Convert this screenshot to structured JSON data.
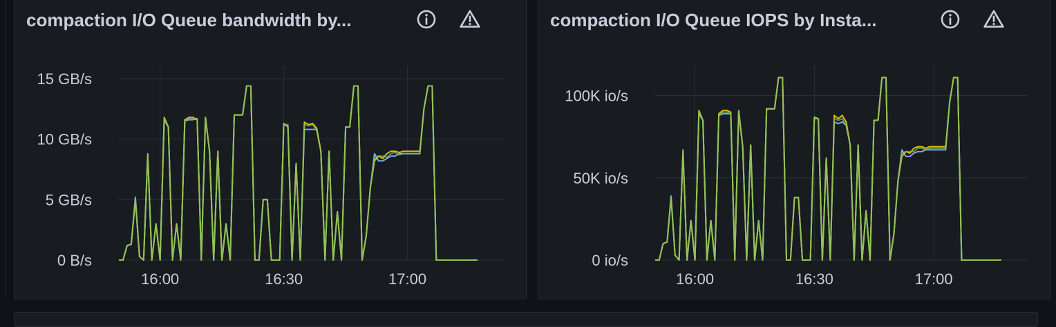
{
  "colors": {
    "series_a": "#8ab8ff",
    "series_b": "#f2cc0c",
    "series_c": "#73bf69",
    "grid": "#2c2f36",
    "text": "#ccccdc"
  },
  "icons": {
    "info": "info-circle-icon",
    "warning": "warning-triangle-icon"
  },
  "panels": [
    {
      "title": "compaction I/O Queue bandwidth by...",
      "chart_data": {
        "type": "line",
        "x": [
          "15:50",
          "15:51",
          "15:52",
          "15:53",
          "15:54",
          "15:55",
          "15:56",
          "15:57",
          "15:58",
          "15:59",
          "16:00",
          "16:01",
          "16:02",
          "16:03",
          "16:04",
          "16:05",
          "16:06",
          "16:07",
          "16:08",
          "16:09",
          "16:10",
          "16:11",
          "16:12",
          "16:13",
          "16:14",
          "16:15",
          "16:16",
          "16:17",
          "16:18",
          "16:19",
          "16:20",
          "16:21",
          "16:22",
          "16:23",
          "16:24",
          "16:25",
          "16:26",
          "16:27",
          "16:28",
          "16:29",
          "16:30",
          "16:31",
          "16:32",
          "16:33",
          "16:34",
          "16:35",
          "16:36",
          "16:37",
          "16:38",
          "16:39",
          "16:40",
          "16:41",
          "16:42",
          "16:43",
          "16:44",
          "16:45",
          "16:46",
          "16:47",
          "16:48",
          "16:49",
          "16:50",
          "16:51",
          "16:52",
          "16:53",
          "16:54",
          "16:55",
          "16:56",
          "16:57",
          "16:58",
          "16:59",
          "17:00",
          "17:01",
          "17:02",
          "17:03",
          "17:04",
          "17:05",
          "17:06",
          "17:07",
          "17:08",
          "17:09",
          "17:10",
          "17:11",
          "17:12",
          "17:13",
          "17:14",
          "17:15",
          "17:16",
          "17:17"
        ],
        "series": [
          {
            "values": [
              0,
              0,
              1.2,
              1.3,
              5.2,
              0.3,
              0,
              8.8,
              0,
              3,
              0,
              11.6,
              11,
              0,
              3,
              0,
              11.5,
              11.6,
              11.6,
              11.7,
              0,
              11.8,
              9,
              0,
              9,
              0,
              3,
              0,
              12,
              12,
              12,
              14.4,
              14.4,
              0,
              0,
              5,
              5,
              0,
              0,
              0,
              11.3,
              11,
              0,
              8,
              0,
              10.8,
              10.8,
              10.8,
              10.8,
              9,
              0,
              9,
              0,
              4,
              0,
              11,
              11,
              14.4,
              14.4,
              0,
              2,
              6,
              8.8,
              8.2,
              8.2,
              8.4,
              8.6,
              8.6,
              8.8,
              8.8,
              8.8,
              8.8,
              8.8,
              8.8,
              12.5,
              14.4,
              14.4,
              0,
              0,
              0,
              0,
              0,
              0,
              0,
              0,
              0,
              0,
              0
            ]
          },
          {
            "values": [
              0,
              0,
              1.2,
              1.3,
              5,
              0.3,
              0,
              8.7,
              0,
              3,
              0,
              11.8,
              11,
              0,
              3,
              0,
              11.6,
              11.8,
              11.8,
              11.6,
              0,
              11.8,
              9,
              0,
              9,
              0,
              3,
              0,
              12,
              12,
              12,
              14.4,
              14.4,
              0,
              0,
              5,
              5,
              0,
              0,
              0,
              11.2,
              11.1,
              0,
              8,
              0,
              11.4,
              11.2,
              11.3,
              10.9,
              9,
              0,
              9,
              0,
              4,
              0,
              11,
              11,
              14.4,
              14.4,
              0,
              2,
              6,
              8.2,
              8.6,
              8.4,
              8.8,
              9,
              9,
              8.9,
              9,
              9,
              9,
              9,
              9,
              12.5,
              14.4,
              14.4,
              0,
              0,
              0,
              0,
              0,
              0,
              0,
              0,
              0,
              0,
              0
            ]
          },
          {
            "values": [
              0,
              0,
              1.2,
              1.3,
              5,
              0.3,
              0,
              8.7,
              0,
              3,
              0,
              11.7,
              11,
              0,
              3,
              0,
              11.5,
              11.7,
              11.7,
              11.6,
              0,
              11.8,
              9,
              0,
              9,
              0,
              3,
              0,
              12,
              12,
              12,
              14.4,
              14.4,
              0,
              0,
              5,
              5,
              0,
              0,
              0,
              11.2,
              11.2,
              0,
              8,
              0,
              11.2,
              11.1,
              11.2,
              10.7,
              9,
              0,
              9,
              0,
              4,
              0,
              11,
              11,
              14.4,
              14.4,
              0,
              2,
              6,
              8.4,
              8.6,
              8.6,
              8.5,
              8.8,
              8.9,
              8.7,
              8.8,
              8.8,
              8.8,
              8.8,
              8.8,
              12.5,
              14.4,
              14.4,
              0,
              0,
              0,
              0,
              0,
              0,
              0,
              0,
              0,
              0,
              0
            ]
          }
        ],
        "ylim": [
          0,
          15
        ],
        "y_ticks": [
          0,
          5,
          10,
          15
        ],
        "y_tick_labels": [
          "0 B/s",
          "5 GB/s",
          "10 GB/s",
          "15 GB/s"
        ],
        "x_ticks": [
          10,
          40,
          70
        ],
        "x_tick_labels": [
          "16:00",
          "16:30",
          "17:00"
        ],
        "grid": true
      }
    },
    {
      "title": "compaction I/O Queue IOPS by Insta...",
      "chart_data": {
        "type": "line",
        "x": [
          "15:50",
          "15:51",
          "15:52",
          "15:53",
          "15:54",
          "15:55",
          "15:56",
          "15:57",
          "15:58",
          "15:59",
          "16:00",
          "16:01",
          "16:02",
          "16:03",
          "16:04",
          "16:05",
          "16:06",
          "16:07",
          "16:08",
          "16:09",
          "16:10",
          "16:11",
          "16:12",
          "16:13",
          "16:14",
          "16:15",
          "16:16",
          "16:17",
          "16:18",
          "16:19",
          "16:20",
          "16:21",
          "16:22",
          "16:23",
          "16:24",
          "16:25",
          "16:26",
          "16:27",
          "16:28",
          "16:29",
          "16:30",
          "16:31",
          "16:32",
          "16:33",
          "16:34",
          "16:35",
          "16:36",
          "16:37",
          "16:38",
          "16:39",
          "16:40",
          "16:41",
          "16:42",
          "16:43",
          "16:44",
          "16:45",
          "16:46",
          "16:47",
          "16:48",
          "16:49",
          "16:50",
          "16:51",
          "16:52",
          "16:53",
          "16:54",
          "16:55",
          "16:56",
          "16:57",
          "16:58",
          "16:59",
          "17:00",
          "17:01",
          "17:02",
          "17:03",
          "17:04",
          "17:05",
          "17:06",
          "17:07",
          "17:08",
          "17:09",
          "17:10",
          "17:11",
          "17:12",
          "17:13",
          "17:14",
          "17:15",
          "17:16",
          "17:17"
        ],
        "series": [
          {
            "values": [
              0,
              0,
              10000,
              11000,
              39000,
              3000,
              0,
              67000,
              0,
              24000,
              0,
              89000,
              85000,
              0,
              24000,
              0,
              88000,
              89000,
              89000,
              89000,
              0,
              90000,
              69000,
              0,
              70000,
              0,
              24000,
              0,
              92000,
              92000,
              92000,
              111000,
              111000,
              0,
              0,
              38000,
              38000,
              0,
              0,
              0,
              87000,
              86000,
              0,
              62000,
              0,
              84000,
              83000,
              84000,
              82000,
              70000,
              0,
              70000,
              0,
              30000,
              0,
              85000,
              85000,
              111000,
              111000,
              0,
              16000,
              48000,
              67000,
              63000,
              63000,
              65000,
              66000,
              66000,
              67000,
              67000,
              67000,
              67000,
              67000,
              67000,
              96000,
              111000,
              111000,
              0,
              0,
              0,
              0,
              0,
              0,
              0,
              0,
              0,
              0,
              0
            ]
          },
          {
            "values": [
              0,
              0,
              10000,
              11000,
              38000,
              3000,
              0,
              66000,
              0,
              24000,
              0,
              91000,
              85000,
              0,
              24000,
              0,
              89000,
              91000,
              91000,
              90000,
              0,
              91000,
              69000,
              0,
              70000,
              0,
              24000,
              0,
              92000,
              92000,
              92000,
              111000,
              111000,
              0,
              0,
              38000,
              38000,
              0,
              0,
              0,
              86000,
              86000,
              0,
              62000,
              0,
              88000,
              86000,
              88000,
              84000,
              70000,
              0,
              70000,
              0,
              30000,
              0,
              85000,
              85000,
              111000,
              111000,
              0,
              16000,
              48000,
              63000,
              66000,
              65000,
              68000,
              69000,
              69000,
              68000,
              69000,
              69000,
              69000,
              69000,
              69000,
              96000,
              111000,
              111000,
              0,
              0,
              0,
              0,
              0,
              0,
              0,
              0,
              0,
              0,
              0
            ]
          },
          {
            "values": [
              0,
              0,
              10000,
              11000,
              38000,
              3000,
              0,
              66000,
              0,
              24000,
              0,
              90000,
              85000,
              0,
              24000,
              0,
              88000,
              90000,
              90000,
              89000,
              0,
              91000,
              69000,
              0,
              70000,
              0,
              24000,
              0,
              92000,
              92000,
              92000,
              111000,
              111000,
              0,
              0,
              38000,
              38000,
              0,
              0,
              0,
              86000,
              86000,
              0,
              62000,
              0,
              86000,
              85000,
              86000,
              82000,
              70000,
              0,
              70000,
              0,
              30000,
              0,
              85000,
              85000,
              111000,
              111000,
              0,
              16000,
              48000,
              65000,
              66000,
              66000,
              66000,
              68000,
              68000,
              67000,
              68000,
              68000,
              68000,
              68000,
              68000,
              96000,
              111000,
              111000,
              0,
              0,
              0,
              0,
              0,
              0,
              0,
              0,
              0,
              0,
              0
            ]
          }
        ],
        "ylim": [
          0,
          120000
        ],
        "y_ticks": [
          0,
          50000,
          100000
        ],
        "y_tick_labels": [
          "0 io/s",
          "50K io/s",
          "100K io/s"
        ],
        "x_ticks": [
          10,
          40,
          70
        ],
        "x_tick_labels": [
          "16:00",
          "16:30",
          "17:00"
        ],
        "grid": true
      }
    }
  ]
}
